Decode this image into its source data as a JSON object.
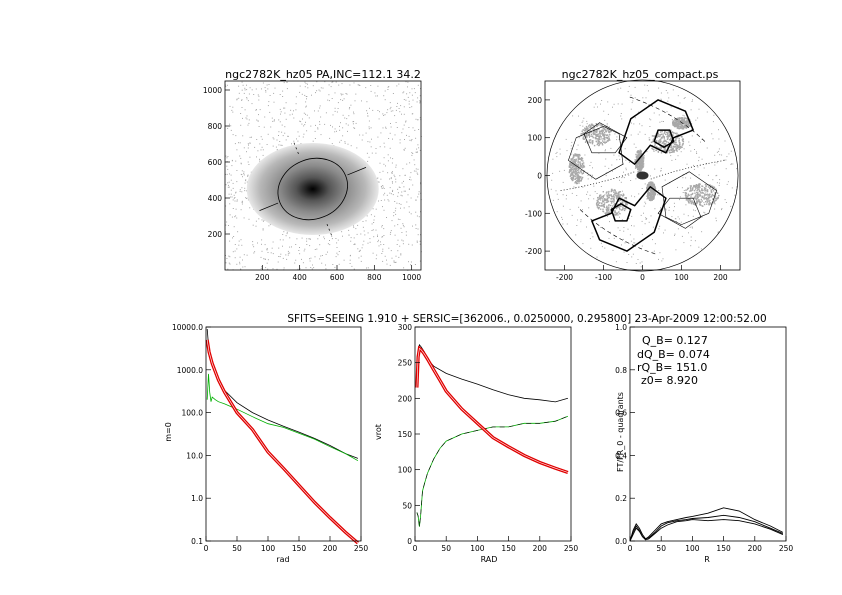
{
  "page": {
    "header": "SFITS=SEEING 1.910 + SERSIC=[362006., 0.0250000, 0.295800]   23-Apr-2009 12:00:52.00"
  },
  "colors": {
    "axis": "#000000",
    "gray_pixels": "#a8a8a8",
    "green": "#00b000",
    "red": "#e00000"
  },
  "chart_data": [
    {
      "id": "image-panel",
      "type": "heatmap",
      "title": "ngc2782K_hz05 PA,INC=112.1 34.2",
      "xlim": [
        0,
        1050
      ],
      "ylim": [
        0,
        1050
      ],
      "xticks": [
        200,
        400,
        600,
        800,
        1000
      ],
      "yticks": [
        200,
        400,
        600,
        800,
        1000
      ],
      "xlabel": "",
      "ylabel": "",
      "center": [
        470,
        450
      ],
      "ellipse": {
        "semi_major": 190,
        "semi_minor": 160,
        "pa_deg": 112.1
      }
    },
    {
      "id": "compact-panel",
      "type": "heatmap",
      "title": "ngc2782K_hz05_compact.ps",
      "xlim": [
        -250,
        250
      ],
      "ylim": [
        -250,
        250
      ],
      "xticks": [
        -200,
        -100,
        0,
        100,
        200
      ],
      "yticks": [
        -200,
        -100,
        0,
        100,
        200
      ],
      "xlabel": "",
      "ylabel": "",
      "disk_radius": 245
    },
    {
      "id": "profile-panel",
      "type": "line",
      "yscale": "log",
      "xlabel": "rad",
      "ylabel": "m=0",
      "xlim": [
        0,
        250
      ],
      "ylim": [
        0.1,
        10000
      ],
      "xticks": [
        0,
        50,
        100,
        150,
        200,
        250
      ],
      "yticks": [
        0.1,
        1,
        10,
        100,
        1000,
        10000
      ],
      "ytick_labels": [
        "0.1",
        "1.0",
        "10.0",
        "100.0",
        "1000.0",
        "10000.0"
      ],
      "series": [
        {
          "color": "#000000",
          "x": [
            2,
            5,
            10,
            20,
            30,
            50,
            75,
            100,
            125,
            150,
            175,
            200,
            225,
            245
          ],
          "y": [
            9000,
            2500,
            1300,
            600,
            330,
            170,
            100,
            67,
            48,
            35,
            25,
            17,
            11,
            8.5
          ]
        },
        {
          "color": "#00b000",
          "x": [
            2,
            4,
            6,
            8,
            10,
            15,
            20,
            30,
            50,
            75,
            100,
            125,
            150,
            175,
            200,
            225,
            245
          ],
          "y": [
            200,
            800,
            300,
            180,
            230,
            200,
            180,
            160,
            120,
            80,
            55,
            45,
            33,
            24,
            16,
            11,
            7.5
          ]
        },
        {
          "color": "#e00000",
          "x": [
            2,
            5,
            10,
            20,
            30,
            50,
            75,
            100,
            125,
            150,
            175,
            200,
            225,
            245
          ],
          "y": [
            5000,
            2600,
            1400,
            580,
            300,
            100,
            40,
            12,
            5,
            2.0,
            0.8,
            0.35,
            0.16,
            0.09
          ]
        }
      ]
    },
    {
      "id": "rotation-panel",
      "type": "line",
      "xlabel": "RAD",
      "ylabel": "vrot",
      "xlim": [
        0,
        250
      ],
      "ylim": [
        0,
        300
      ],
      "xticks": [
        0,
        50,
        100,
        150,
        200,
        250
      ],
      "yticks": [
        0,
        50,
        100,
        150,
        200,
        250,
        300
      ],
      "series": [
        {
          "color": "#000000",
          "x": [
            3,
            5,
            7,
            10,
            15,
            20,
            30,
            50,
            75,
            100,
            125,
            150,
            175,
            200,
            225,
            245
          ],
          "y": [
            220,
            262,
            275,
            272,
            265,
            255,
            245,
            235,
            227,
            220,
            212,
            205,
            200,
            198,
            195,
            200
          ]
        },
        {
          "color": "#00b000",
          "x": [
            3,
            5,
            7,
            9,
            12,
            15,
            20,
            25,
            30,
            40,
            50,
            75,
            100,
            125,
            150,
            175,
            200,
            225,
            245
          ],
          "y": [
            40,
            35,
            20,
            35,
            70,
            80,
            95,
            105,
            115,
            130,
            140,
            150,
            155,
            160,
            160,
            165,
            165,
            168,
            175
          ]
        },
        {
          "color": "#e00000",
          "x": [
            3,
            5,
            7,
            10,
            15,
            20,
            30,
            40,
            50,
            75,
            100,
            125,
            150,
            175,
            200,
            225,
            245
          ],
          "y": [
            215,
            258,
            270,
            268,
            262,
            255,
            240,
            225,
            210,
            185,
            165,
            145,
            132,
            120,
            110,
            102,
            96
          ]
        }
      ]
    },
    {
      "id": "torque-panel",
      "type": "line",
      "xlabel": "R",
      "ylabel": "FT/FR_0 - quadrants",
      "xlim": [
        0,
        250
      ],
      "ylim": [
        0,
        1.0
      ],
      "xticks": [
        0,
        50,
        100,
        150,
        200,
        250
      ],
      "yticks": [
        0,
        0.2,
        0.4,
        0.6,
        0.8,
        1.0
      ],
      "ytick_labels": [
        "0.0",
        "0.2",
        "0.4",
        "0.6",
        "0.8",
        "1.0"
      ],
      "annotations": [
        "Q_B=  0.127",
        "dQ_B=  0.074",
        "rQ_B=  151.0",
        "z0=  8.920"
      ],
      "series": [
        {
          "color": "#000000",
          "x": [
            0,
            5,
            10,
            15,
            20,
            25,
            30,
            40,
            50,
            60,
            75,
            90,
            100,
            125,
            150,
            175,
            200,
            225,
            245
          ],
          "y": [
            0.0,
            0.05,
            0.08,
            0.06,
            0.03,
            0.01,
            0.02,
            0.05,
            0.08,
            0.09,
            0.1,
            0.11,
            0.115,
            0.13,
            0.155,
            0.14,
            0.1,
            0.07,
            0.04
          ]
        },
        {
          "color": "#000000",
          "x": [
            0,
            5,
            10,
            15,
            20,
            25,
            30,
            40,
            50,
            60,
            75,
            90,
            100,
            125,
            150,
            175,
            200,
            225,
            245
          ],
          "y": [
            0.0,
            0.04,
            0.07,
            0.05,
            0.02,
            0.01,
            0.015,
            0.04,
            0.07,
            0.085,
            0.095,
            0.1,
            0.105,
            0.11,
            0.12,
            0.11,
            0.09,
            0.06,
            0.035
          ]
        },
        {
          "color": "#000000",
          "x": [
            0,
            5,
            10,
            15,
            20,
            25,
            30,
            40,
            50,
            60,
            75,
            90,
            100,
            125,
            150,
            175,
            200,
            225,
            245
          ],
          "y": [
            0.0,
            0.03,
            0.06,
            0.045,
            0.02,
            0.005,
            0.01,
            0.035,
            0.06,
            0.075,
            0.09,
            0.095,
            0.1,
            0.095,
            0.1,
            0.095,
            0.08,
            0.055,
            0.03
          ]
        }
      ]
    }
  ]
}
